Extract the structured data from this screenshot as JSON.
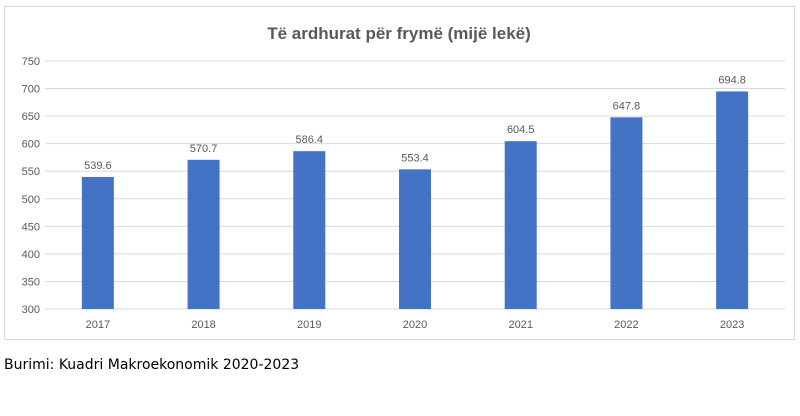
{
  "chart_data": {
    "type": "bar",
    "title": "Të ardhurat për frymë (mijë lekë)",
    "categories": [
      "2017",
      "2018",
      "2019",
      "2020",
      "2021",
      "2022",
      "2023"
    ],
    "values": [
      539.6,
      570.7,
      586.4,
      553.4,
      604.5,
      647.8,
      694.8
    ],
    "value_labels": [
      "539.6",
      "570.7",
      "586.4",
      "553.4",
      "604.5",
      "647.8",
      "694.8"
    ],
    "xlabel": "",
    "ylabel": "",
    "ylim": [
      300,
      750
    ],
    "yticks": [
      "300",
      "350",
      "400",
      "450",
      "500",
      "550",
      "600",
      "650",
      "700",
      "750"
    ],
    "grid": true,
    "legend": "none",
    "bar_color": "#4472c4",
    "grid_color": "#d9d9d9",
    "text_color": "#595959"
  },
  "source": "Burimi: Kuadri Makroekonomik 2020-2023"
}
